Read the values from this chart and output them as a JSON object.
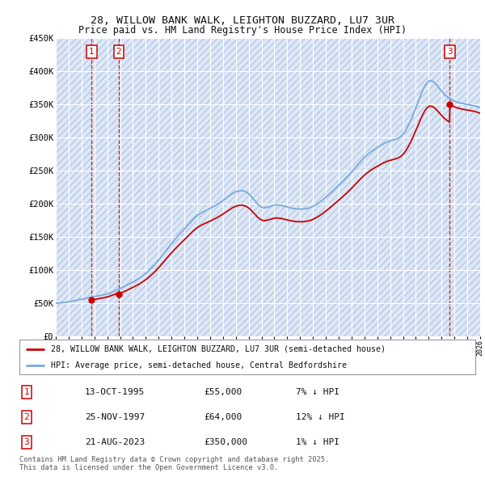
{
  "title_line1": "28, WILLOW BANK WALK, LEIGHTON BUZZARD, LU7 3UR",
  "title_line2": "Price paid vs. HM Land Registry's House Price Index (HPI)",
  "ylim": [
    0,
    450000
  ],
  "yticks": [
    0,
    50000,
    100000,
    150000,
    200000,
    250000,
    300000,
    350000,
    400000,
    450000
  ],
  "ytick_labels": [
    "£0",
    "£50K",
    "£100K",
    "£150K",
    "£200K",
    "£250K",
    "£300K",
    "£350K",
    "£400K",
    "£450K"
  ],
  "background_color": "#ffffff",
  "plot_bg_color": "#dde8f8",
  "hatch_color": "#b8c8e0",
  "grid_color": "#ffffff",
  "purchases": [
    {
      "date_num": 1995.79,
      "price": 55000,
      "label": "1",
      "hpi_pct": "7% ↓ HPI",
      "date_str": "13-OCT-1995"
    },
    {
      "date_num": 1997.9,
      "price": 64000,
      "label": "2",
      "hpi_pct": "12% ↓ HPI",
      "date_str": "25-NOV-1997"
    },
    {
      "date_num": 2023.64,
      "price": 350000,
      "label": "3",
      "hpi_pct": "1% ↓ HPI",
      "date_str": "21-AUG-2023"
    }
  ],
  "legend_line1": "28, WILLOW BANK WALK, LEIGHTON BUZZARD, LU7 3UR (semi-detached house)",
  "legend_line2": "HPI: Average price, semi-detached house, Central Bedfordshire",
  "footer": "Contains HM Land Registry data © Crown copyright and database right 2025.\nThis data is licensed under the Open Government Licence v3.0.",
  "xmin": 1993,
  "xmax": 2026,
  "red_line_color": "#cc0000",
  "blue_line_color": "#7aaadd",
  "dot_color": "#cc0000",
  "box_color": "#cc0000",
  "hpi_knots_x": [
    1993,
    1994,
    1995,
    1996,
    1997,
    1998,
    1999,
    2000,
    2001,
    2002,
    2003,
    2004,
    2005,
    2006,
    2007,
    2008,
    2009,
    2010,
    2011,
    2012,
    2013,
    2014,
    2015,
    2016,
    2017,
    2018,
    2019,
    2020,
    2021,
    2022,
    2023,
    2024,
    2025,
    2026
  ],
  "hpi_knots_y": [
    50000,
    52000,
    56000,
    60000,
    64000,
    72000,
    82000,
    95000,
    115000,
    140000,
    162000,
    182000,
    193000,
    205000,
    218000,
    215000,
    195000,
    198000,
    195000,
    192000,
    196000,
    210000,
    228000,
    248000,
    270000,
    285000,
    295000,
    305000,
    345000,
    385000,
    370000,
    355000,
    350000,
    345000
  ]
}
